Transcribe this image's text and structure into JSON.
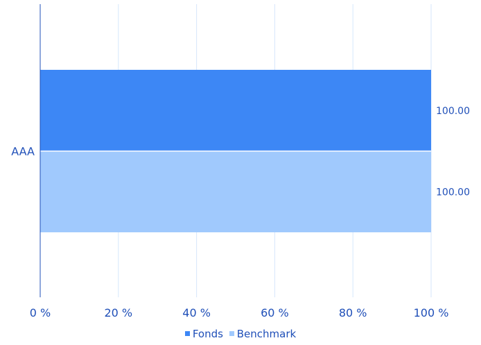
{
  "chart_data": {
    "type": "bar",
    "orientation": "horizontal",
    "categories": [
      "AAA"
    ],
    "series": [
      {
        "name": "Fonds",
        "values": [
          100.0
        ],
        "color": "#3d87f5"
      },
      {
        "name": "Benchmark",
        "values": [
          100.0
        ],
        "color": "#a0c9fd"
      }
    ],
    "data_labels": [
      "100.00",
      "100.00"
    ],
    "xlim": [
      0,
      100
    ],
    "x_ticks": [
      "0 %",
      "20 %",
      "40 %",
      "60 %",
      "80 %",
      "100 %"
    ],
    "grid": true,
    "legend_position": "bottom-center",
    "colors": {
      "text": "#1f4fb8",
      "grid": "#d6e6fb",
      "axis": "#1f4fb8"
    }
  }
}
